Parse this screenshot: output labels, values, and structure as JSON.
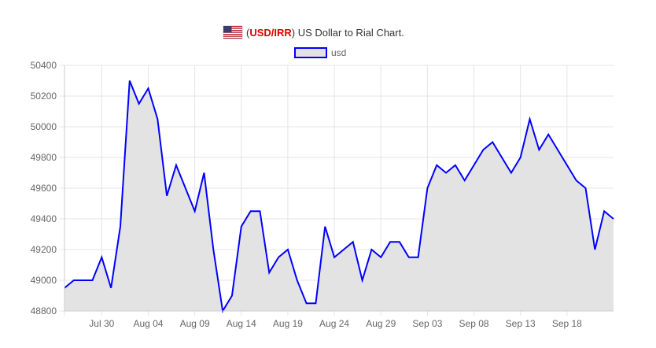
{
  "chart_data": {
    "type": "area",
    "title_prefix": "(",
    "title_pair": "USD/IRR",
    "title_suffix": ") US Dollar to Rial Chart.",
    "flag_icon": "us-flag-icon",
    "xlabel": "",
    "ylabel": "",
    "ylim": [
      48800,
      50400
    ],
    "y_ticks": [
      50400,
      50200,
      50000,
      49800,
      49600,
      49400,
      49200,
      49000,
      48800
    ],
    "x_tick_labels": [
      "Jul 30",
      "Aug 04",
      "Aug 09",
      "Aug 14",
      "Aug 19",
      "Aug 24",
      "Aug 29",
      "Sep 03",
      "Sep 08",
      "Sep 13",
      "Sep 18"
    ],
    "grid": true,
    "legend_position": "top",
    "series": [
      {
        "name": "usd",
        "line_color": "#0000ff",
        "fill_color": "#e3e3e3",
        "values": [
          48950,
          49000,
          49000,
          49000,
          49150,
          48950,
          49350,
          50300,
          50150,
          50250,
          50050,
          49550,
          49750,
          49600,
          49450,
          49700,
          49200,
          48800,
          48900,
          49350,
          49450,
          49450,
          49050,
          49150,
          49200,
          49000,
          48850,
          48850,
          49350,
          49150,
          49200,
          49250,
          49000,
          49200,
          49150,
          49250,
          49250,
          49150,
          49150,
          49600,
          49750,
          49700,
          49750,
          49650,
          49750,
          49850,
          49900,
          49800,
          49700,
          49800,
          50050,
          49850,
          49950,
          49850,
          49750,
          49650,
          49600,
          49200,
          49450,
          49400
        ]
      }
    ]
  }
}
